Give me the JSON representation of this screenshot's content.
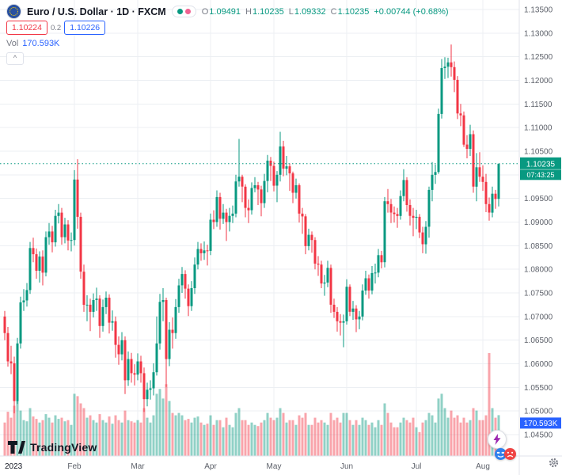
{
  "header": {
    "symbol_title": "Euro / U.S. Dollar · 1D · FXCM",
    "ohlc": {
      "o_label": "O",
      "o": "1.09491",
      "h_label": "H",
      "h": "1.10235",
      "l_label": "L",
      "l": "1.09332",
      "c_label": "C",
      "c": "1.10235",
      "change": "+0.00744 (+0.68%)"
    },
    "bid": "1.10224",
    "spread": "0.2",
    "ask": "1.10226",
    "vol_label": "Vol",
    "vol_value": "170.593K"
  },
  "icons": {
    "collapse": "^"
  },
  "price_line": {
    "price": "1.10235",
    "countdown": "07:43:25"
  },
  "volume_label": "170.593K",
  "footer": {
    "brand": "TradingView"
  },
  "colors": {
    "up": "#089981",
    "down": "#f23645",
    "vol_up": "rgba(8,153,129,0.45)",
    "vol_down": "rgba(242,54,69,0.45)",
    "dot_pink": "#f06292",
    "ask_blue": "#2962ff",
    "bid_red": "#f23645",
    "flash_purple": "#9c27b0",
    "grid": "#eceff3",
    "axis_text": "#5c6069"
  },
  "chart_data": {
    "type": "candlestick",
    "symbol": "EURUSD",
    "description": "Euro / U.S. Dollar",
    "exchange": "FXCM",
    "interval": "1D",
    "ylim": [
      1.045,
      1.135
    ],
    "price_step": 0.005,
    "grid": true,
    "candle_format": [
      "open",
      "high",
      "low",
      "close",
      "volume_k"
    ],
    "month_ticks": [
      {
        "label": "2023",
        "index": 0
      },
      {
        "label": "Feb",
        "index": 22
      },
      {
        "label": "Mar",
        "index": 42
      },
      {
        "label": "Apr",
        "index": 65
      },
      {
        "label": "May",
        "index": 85
      },
      {
        "label": "Jun",
        "index": 108
      },
      {
        "label": "Jul",
        "index": 130
      },
      {
        "label": "Aug",
        "index": 151
      }
    ],
    "candles": [
      [
        1.07,
        1.0712,
        1.065,
        1.0665,
        140
      ],
      [
        1.0665,
        1.0678,
        1.0594,
        1.0605,
        185
      ],
      [
        1.0605,
        1.0638,
        1.0578,
        1.0601,
        160
      ],
      [
        1.0601,
        1.0615,
        1.0495,
        1.0521,
        210
      ],
      [
        1.0521,
        1.0655,
        1.0515,
        1.0643,
        230
      ],
      [
        1.0643,
        1.0742,
        1.0632,
        1.073,
        190
      ],
      [
        1.073,
        1.0758,
        1.0712,
        1.0734,
        150
      ],
      [
        1.0734,
        1.0771,
        1.0721,
        1.0756,
        145
      ],
      [
        1.0756,
        1.0858,
        1.0748,
        1.0845,
        200
      ],
      [
        1.0845,
        1.0867,
        1.0815,
        1.0832,
        165
      ],
      [
        1.0832,
        1.0844,
        1.078,
        1.0797,
        155
      ],
      [
        1.0797,
        1.0838,
        1.0772,
        1.0827,
        140
      ],
      [
        1.0827,
        1.084,
        1.0766,
        1.0793,
        150
      ],
      [
        1.0793,
        1.088,
        1.0785,
        1.0868,
        175
      ],
      [
        1.0868,
        1.0898,
        1.0852,
        1.088,
        160
      ],
      [
        1.088,
        1.0892,
        1.0836,
        1.0857,
        140
      ],
      [
        1.0857,
        1.0926,
        1.0848,
        1.0913,
        170
      ],
      [
        1.0913,
        1.0938,
        1.0897,
        1.092,
        155
      ],
      [
        1.092,
        1.093,
        1.0852,
        1.0868,
        160
      ],
      [
        1.0868,
        1.0909,
        1.0855,
        1.0895,
        145
      ],
      [
        1.0895,
        1.0904,
        1.084,
        1.0861,
        150
      ],
      [
        1.0861,
        1.0878,
        1.0838,
        1.0862,
        130
      ],
      [
        1.0862,
        1.101,
        1.085,
        1.099,
        260
      ],
      [
        1.099,
        1.1033,
        1.0886,
        1.0911,
        250
      ],
      [
        1.0911,
        1.092,
        1.078,
        1.0795,
        220
      ],
      [
        1.0795,
        1.081,
        1.071,
        1.0725,
        200
      ],
      [
        1.0725,
        1.0745,
        1.069,
        1.0725,
        160
      ],
      [
        1.0725,
        1.0738,
        1.0669,
        1.071,
        170
      ],
      [
        1.071,
        1.0749,
        1.0698,
        1.0735,
        150
      ],
      [
        1.0735,
        1.0761,
        1.0712,
        1.0738,
        140
      ],
      [
        1.0738,
        1.0745,
        1.0655,
        1.068,
        175
      ],
      [
        1.068,
        1.0736,
        1.0668,
        1.072,
        150
      ],
      [
        1.072,
        1.0753,
        1.0705,
        1.074,
        140
      ],
      [
        1.074,
        1.0747,
        1.0664,
        1.0687,
        165
      ],
      [
        1.0687,
        1.0713,
        1.067,
        1.069,
        135
      ],
      [
        1.069,
        1.07,
        1.0613,
        1.064,
        170
      ],
      [
        1.064,
        1.0658,
        1.0598,
        1.062,
        150
      ],
      [
        1.062,
        1.0667,
        1.0607,
        1.065,
        140
      ],
      [
        1.065,
        1.0658,
        1.0536,
        1.0565,
        190
      ],
      [
        1.0565,
        1.0626,
        1.0553,
        1.061,
        150
      ],
      [
        1.061,
        1.0623,
        1.056,
        1.058,
        145
      ],
      [
        1.058,
        1.0599,
        1.0554,
        1.0577,
        140
      ],
      [
        1.0577,
        1.0622,
        1.0565,
        1.0605,
        150
      ],
      [
        1.0605,
        1.0617,
        1.056,
        1.058,
        140
      ],
      [
        1.058,
        1.0592,
        1.0498,
        1.0525,
        200
      ],
      [
        1.0525,
        1.056,
        1.051,
        1.0545,
        160
      ],
      [
        1.0545,
        1.0565,
        1.0524,
        1.0548,
        140
      ],
      [
        1.0548,
        1.0601,
        1.0533,
        1.0582,
        170
      ],
      [
        1.0582,
        1.07,
        1.0575,
        1.0643,
        260
      ],
      [
        1.0643,
        1.0748,
        1.063,
        1.0731,
        280
      ],
      [
        1.0731,
        1.076,
        1.069,
        1.0735,
        240
      ],
      [
        1.0735,
        1.074,
        1.0551,
        1.061,
        300
      ],
      [
        1.061,
        1.0688,
        1.0595,
        1.0672,
        230
      ],
      [
        1.0672,
        1.0698,
        1.0632,
        1.0665,
        180
      ],
      [
        1.0665,
        1.0737,
        1.0653,
        1.072,
        170
      ],
      [
        1.072,
        1.078,
        1.0708,
        1.0766,
        180
      ],
      [
        1.0766,
        1.0805,
        1.075,
        1.079,
        170
      ],
      [
        1.079,
        1.0798,
        1.0738,
        1.0759,
        150
      ],
      [
        1.0759,
        1.0768,
        1.0701,
        1.0722,
        155
      ],
      [
        1.0722,
        1.0775,
        1.0712,
        1.076,
        140
      ],
      [
        1.076,
        1.0825,
        1.0748,
        1.081,
        160
      ],
      [
        1.081,
        1.0858,
        1.08,
        1.0843,
        165
      ],
      [
        1.0843,
        1.0855,
        1.0818,
        1.0834,
        140
      ],
      [
        1.0834,
        1.0859,
        1.082,
        1.084,
        130
      ],
      [
        1.084,
        1.0852,
        1.0808,
        1.0839,
        135
      ],
      [
        1.0839,
        1.0918,
        1.083,
        1.0905,
        170
      ],
      [
        1.0905,
        1.0925,
        1.0885,
        1.09,
        130
      ],
      [
        1.09,
        1.0967,
        1.089,
        1.0953,
        150
      ],
      [
        1.0953,
        1.0962,
        1.0884,
        1.0907,
        150
      ],
      [
        1.0907,
        1.0938,
        1.0896,
        1.092,
        120
      ],
      [
        1.092,
        1.0928,
        1.086,
        1.09,
        160
      ],
      [
        1.09,
        1.093,
        1.088,
        1.0913,
        130
      ],
      [
        1.0913,
        1.0935,
        1.0898,
        1.0918,
        120
      ],
      [
        1.0918,
        1.1,
        1.091,
        1.0986,
        180
      ],
      [
        1.0986,
        1.1076,
        1.0975,
        1.0996,
        200
      ],
      [
        1.0996,
        1.1,
        1.0942,
        1.0975,
        150
      ],
      [
        1.0975,
        1.098,
        1.091,
        1.093,
        150
      ],
      [
        1.093,
        1.0948,
        1.0898,
        1.0925,
        130
      ],
      [
        1.0925,
        1.0984,
        1.0916,
        1.0972,
        140
      ],
      [
        1.0972,
        1.0995,
        1.0963,
        1.0978,
        130
      ],
      [
        1.0978,
        1.0985,
        1.0936,
        1.0969,
        125
      ],
      [
        1.0969,
        1.0977,
        1.0912,
        1.094,
        140
      ],
      [
        1.094,
        1.1002,
        1.093,
        1.0987,
        150
      ],
      [
        1.0987,
        1.1042,
        1.0963,
        1.103,
        180
      ],
      [
        1.103,
        1.1038,
        1.0987,
        1.1019,
        160
      ],
      [
        1.1019,
        1.1028,
        1.0965,
        1.0977,
        150
      ],
      [
        1.0977,
        1.1008,
        1.0942,
        1.1,
        160
      ],
      [
        1.1,
        1.1091,
        1.0986,
        1.106,
        200
      ],
      [
        1.106,
        1.1072,
        1.0997,
        1.1013,
        180
      ],
      [
        1.1013,
        1.104,
        1.0999,
        1.1018,
        140
      ],
      [
        1.1018,
        1.1024,
        1.0966,
        1.1003,
        150
      ],
      [
        1.1003,
        1.1007,
        1.094,
        1.0962,
        150
      ],
      [
        1.0962,
        1.0992,
        1.095,
        1.0978,
        130
      ],
      [
        1.0978,
        1.0982,
        1.0899,
        1.0918,
        170
      ],
      [
        1.0918,
        1.093,
        1.0875,
        1.0912,
        160
      ],
      [
        1.0912,
        1.0917,
        1.0832,
        1.0849,
        180
      ],
      [
        1.0849,
        1.0886,
        1.084,
        1.0873,
        130
      ],
      [
        1.0873,
        1.088,
        1.0835,
        1.0862,
        130
      ],
      [
        1.0862,
        1.0868,
        1.08,
        1.0812,
        160
      ],
      [
        1.0812,
        1.0828,
        1.0786,
        1.081,
        140
      ],
      [
        1.081,
        1.0818,
        1.076,
        1.077,
        150
      ],
      [
        1.077,
        1.0788,
        1.0744,
        1.0772,
        140
      ],
      [
        1.0772,
        1.0818,
        1.0762,
        1.0803,
        130
      ],
      [
        1.0803,
        1.081,
        1.0708,
        1.0725,
        180
      ],
      [
        1.0725,
        1.0738,
        1.0697,
        1.071,
        150
      ],
      [
        1.071,
        1.072,
        1.0668,
        1.069,
        160
      ],
      [
        1.069,
        1.0705,
        1.066,
        1.0687,
        140
      ],
      [
        1.0687,
        1.0704,
        1.0635,
        1.069,
        180
      ],
      [
        1.069,
        1.0779,
        1.0683,
        1.0763,
        180
      ],
      [
        1.0763,
        1.0768,
        1.0701,
        1.071,
        150
      ],
      [
        1.071,
        1.0733,
        1.0693,
        1.0717,
        130
      ],
      [
        1.0717,
        1.0724,
        1.0667,
        1.0694,
        150
      ],
      [
        1.0694,
        1.0712,
        1.0673,
        1.07,
        130
      ],
      [
        1.07,
        1.0768,
        1.0692,
        1.0755,
        160
      ],
      [
        1.0755,
        1.0797,
        1.0746,
        1.0781,
        150
      ],
      [
        1.0781,
        1.0789,
        1.0738,
        1.0755,
        130
      ],
      [
        1.0755,
        1.0807,
        1.0747,
        1.0792,
        140
      ],
      [
        1.0792,
        1.0812,
        1.077,
        1.0793,
        120
      ],
      [
        1.0793,
        1.0843,
        1.0783,
        1.083,
        150
      ],
      [
        1.083,
        1.0839,
        1.0802,
        1.0815,
        130
      ],
      [
        1.0815,
        1.0953,
        1.0804,
        1.0944,
        220
      ],
      [
        1.0944,
        1.097,
        1.092,
        1.0938,
        180
      ],
      [
        1.0938,
        1.0949,
        1.0898,
        1.092,
        140
      ],
      [
        1.092,
        1.0933,
        1.0899,
        1.0917,
        120
      ],
      [
        1.0917,
        1.093,
        1.0888,
        1.0913,
        120
      ],
      [
        1.0913,
        1.0967,
        1.0905,
        1.0955,
        140
      ],
      [
        1.0955,
        1.1012,
        1.0944,
        1.0989,
        160
      ],
      [
        1.0989,
        1.0995,
        1.0922,
        1.0936,
        150
      ],
      [
        1.0936,
        1.0948,
        1.0893,
        1.0913,
        140
      ],
      [
        1.0913,
        1.093,
        1.087,
        1.0909,
        160
      ],
      [
        1.0909,
        1.0926,
        1.0885,
        1.0911,
        120
      ],
      [
        1.0911,
        1.0917,
        1.0866,
        1.0878,
        100
      ],
      [
        1.0878,
        1.089,
        1.0834,
        1.0853,
        140
      ],
      [
        1.0853,
        1.0902,
        1.0833,
        1.089,
        150
      ],
      [
        1.089,
        1.0975,
        1.0867,
        1.0968,
        180
      ],
      [
        1.0968,
        1.1027,
        1.0944,
        1.1,
        170
      ],
      [
        1.1,
        1.1022,
        1.0981,
        1.1006,
        140
      ],
      [
        1.1006,
        1.114,
        1.1002,
        1.1129,
        240
      ],
      [
        1.1129,
        1.1245,
        1.1119,
        1.1226,
        260
      ],
      [
        1.1226,
        1.1249,
        1.1203,
        1.1229,
        200
      ],
      [
        1.1229,
        1.1248,
        1.1205,
        1.1238,
        160
      ],
      [
        1.1238,
        1.1276,
        1.1208,
        1.1228,
        190
      ],
      [
        1.1228,
        1.124,
        1.1175,
        1.1201,
        160
      ],
      [
        1.1201,
        1.1209,
        1.1118,
        1.113,
        170
      ],
      [
        1.113,
        1.115,
        1.1103,
        1.1126,
        140
      ],
      [
        1.1126,
        1.1134,
        1.1059,
        1.1064,
        160
      ],
      [
        1.1064,
        1.1084,
        1.1035,
        1.1055,
        140
      ],
      [
        1.1055,
        1.1106,
        1.104,
        1.1086,
        150
      ],
      [
        1.1086,
        1.1094,
        1.0962,
        1.0975,
        200
      ],
      [
        1.0975,
        1.1046,
        1.0944,
        1.1016,
        190
      ],
      [
        1.1016,
        1.1048,
        1.0985,
        1.0996,
        150
      ],
      [
        1.0996,
        1.102,
        1.0966,
        1.0985,
        150
      ],
      [
        1.0985,
        1.1002,
        1.0921,
        1.0938,
        170
      ],
      [
        1.0938,
        1.0952,
        1.0903,
        1.092,
        430
      ],
      [
        1.092,
        1.0975,
        1.091,
        1.096,
        200
      ],
      [
        1.096,
        1.0968,
        1.0928,
        1.0949,
        160
      ],
      [
        1.09491,
        1.10235,
        1.09332,
        1.10235,
        170.593
      ]
    ]
  }
}
